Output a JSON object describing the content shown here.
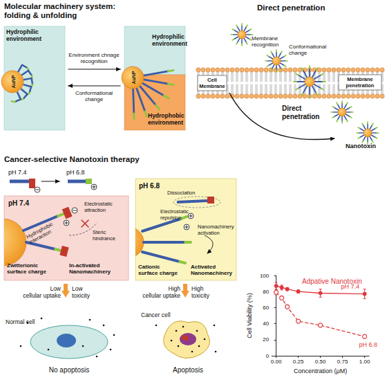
{
  "diagram": {
    "folding": {
      "title": [
        "Molecular machinery system:",
        "folding & unfolding"
      ],
      "left_box": {
        "environment": [
          "Hydrophilic",
          "environment"
        ],
        "particle": "AuNP"
      },
      "forward_arrow": [
        "Environment chnage",
        "recognition"
      ],
      "back_arrow": [
        "Conformational",
        "change"
      ],
      "right_box": {
        "top_environment": [
          "Hydrophilic",
          "environment"
        ],
        "bottom_environment": [
          "Hydrophobic",
          "environment"
        ],
        "particle": "AuNP"
      }
    },
    "penetration": {
      "title": "Direct penetration",
      "recognition": [
        "Membrane",
        "recognition"
      ],
      "conformational": [
        "Conformational",
        "change"
      ],
      "membrane": [
        "Cell",
        "Membrane"
      ],
      "penetration": [
        "Membrane",
        "penetration"
      ],
      "path": [
        "Direct",
        "penetration"
      ],
      "product": "Nanotoxin"
    },
    "therapy": {
      "title": "Cancer-selective Nanotoxin therapy",
      "ph_switch": {
        "from": "pH 7.4",
        "to": "pH 6.8"
      },
      "normal": {
        "ph": "pH 7.4",
        "attraction": [
          "Electrostatic",
          "attraction"
        ],
        "hydrophobic": [
          "Hydrophobic",
          "interaction"
        ],
        "steric": [
          "Steric",
          "hindrance"
        ],
        "charge": [
          "Zwitterionic",
          "surface charge"
        ],
        "state": [
          "In-activated",
          "Nanomachinery"
        ],
        "uptake": [
          "Low",
          "cellular uptake"
        ],
        "toxicity": [
          "Low",
          "toxicity"
        ],
        "cell": "Normal cell",
        "outcome": "No apoptosis"
      },
      "cancer": {
        "ph": "pH 6.8",
        "dissociation": "Dissociation",
        "repulsion": [
          "Electrostatic",
          "repulsion"
        ],
        "activation": [
          "Nanomachinery",
          "activation"
        ],
        "charge": [
          "Cationic",
          "surface charge"
        ],
        "state": [
          "Activated",
          "Nanomachinery"
        ],
        "uptake": [
          "High",
          "cellular uptake"
        ],
        "toxicity": [
          "High",
          "toxicity"
        ],
        "cell": "Cancer cell",
        "outcome": "Apoptosis"
      }
    }
  },
  "chart_data": {
    "type": "line",
    "title": "Adpative Nanotoxin",
    "x_label": "Concentration (μM)",
    "y_label": "Cell Viability (%)",
    "xlim": [
      -0.05,
      1.05
    ],
    "xticks": [
      {
        "value": 0,
        "label": "0.00"
      },
      {
        "value": 0.25,
        "label": "0.25"
      },
      {
        "value": 0.5,
        "label": "0.50"
      },
      {
        "value": 0.75,
        "label": "0.75"
      },
      {
        "value": 1,
        "label": "1.00"
      }
    ],
    "ylim": [
      0,
      100
    ],
    "yticks": [
      0,
      20,
      40,
      60,
      80,
      100
    ],
    "grid": false,
    "x": [
      0,
      0.0625,
      0.125,
      0.25,
      0.5,
      1
    ],
    "series": [
      {
        "name": "pH 7.4",
        "color": "#e0393e",
        "values": [
          87,
          85,
          83,
          80,
          78,
          77
        ],
        "errors": [
          4,
          3,
          2,
          2,
          5,
          6
        ],
        "marker": "filled",
        "line_style": "solid"
      },
      {
        "name": "pH 6.8",
        "color": "#e0393e",
        "values": [
          79,
          72,
          61,
          43,
          38,
          24
        ],
        "errors": [
          3,
          2,
          2,
          2,
          2,
          2
        ],
        "marker": "hollow",
        "line_style": "dashed"
      }
    ]
  }
}
